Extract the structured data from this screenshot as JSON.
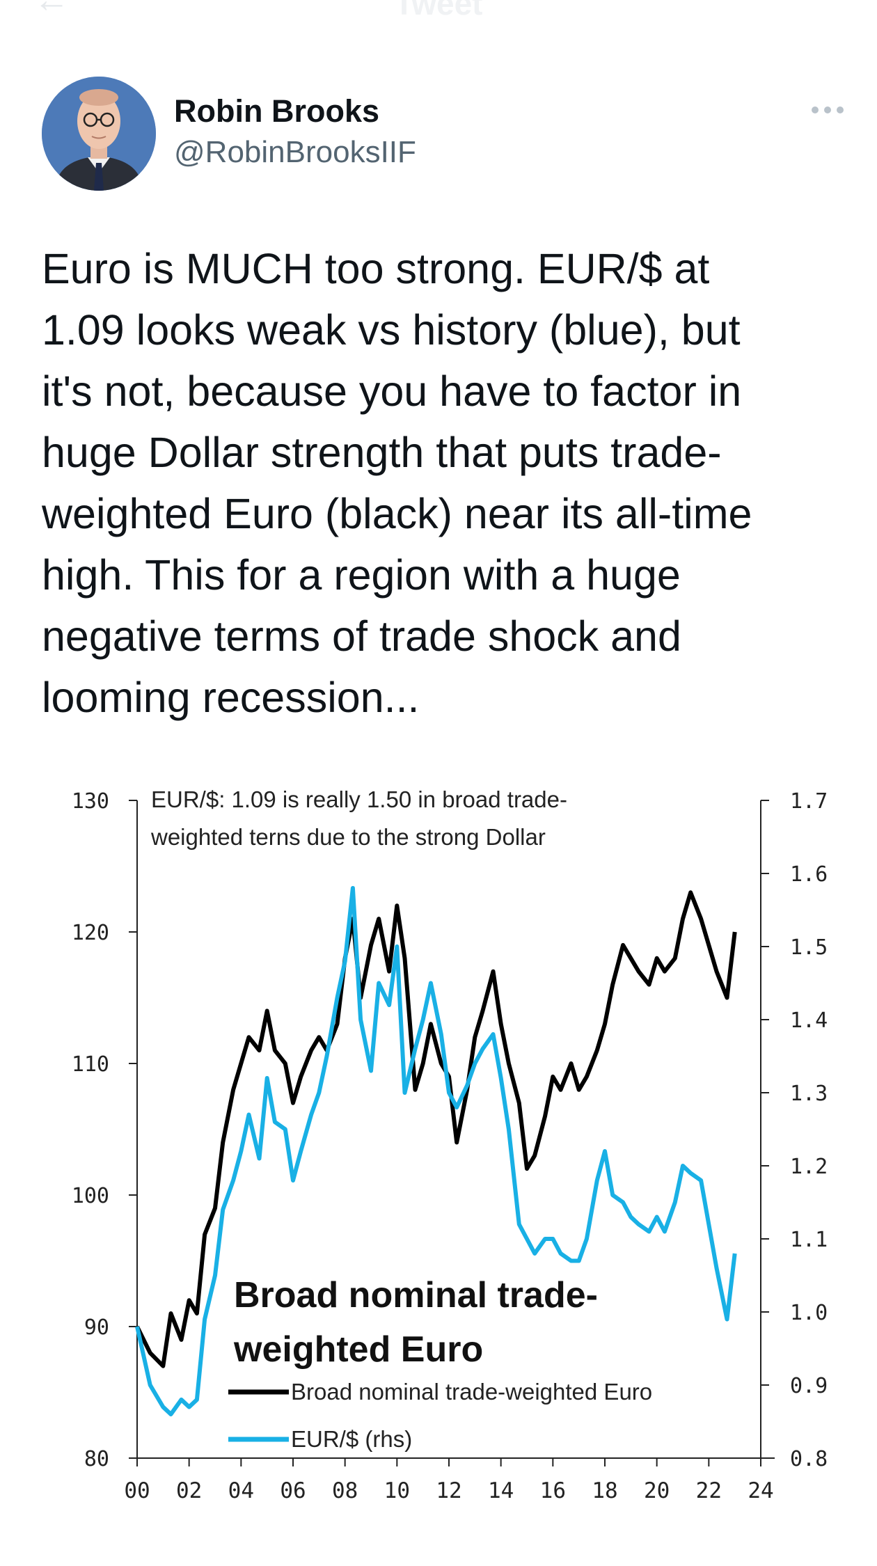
{
  "topbar": {
    "title": "Tweet",
    "back_icon": "back-arrow-icon"
  },
  "author": {
    "name": "Robin Brooks",
    "handle": "@RobinBrooksIIF",
    "avatar_icon": "profile-photo"
  },
  "more_icon": "more-options-icon",
  "tweet_text": "Euro is MUCH too strong. EUR/$ at\n1.09 looks weak vs history (blue), but\nit's not, because you have to factor in\nhuge Dollar strength that puts trade-\nweighted Euro (black) near its all-time\nhigh. This for a region with a huge\nnegative terms of trade shock and\nlooming recession...",
  "chart_data": {
    "type": "line",
    "title": "EUR/$: 1.09 is really 1.50 in broad trade-weighted terns due to the strong Dollar",
    "title_lines": [
      "EUR/$: 1.09 is really 1.50 in broad trade-",
      "weighted terns due to the strong Dollar"
    ],
    "annotation_lines": [
      "Broad nominal trade-",
      "weighted Euro"
    ],
    "xlim": [
      0,
      24
    ],
    "x_ticks": [
      "00",
      "02",
      "04",
      "06",
      "08",
      "10",
      "12",
      "14",
      "16",
      "18",
      "20",
      "22",
      "24"
    ],
    "left_axis": {
      "ylim": [
        80,
        130
      ],
      "ticks": [
        "80",
        "90",
        "100",
        "110",
        "120",
        "130"
      ]
    },
    "right_axis": {
      "ylim": [
        0.8,
        1.7
      ],
      "ticks": [
        "0.8",
        "0.9",
        "1.0",
        "1.1",
        "1.2",
        "1.3",
        "1.4",
        "1.5",
        "1.6",
        "1.7"
      ]
    },
    "grid": false,
    "legend_position": "bottom-center",
    "series": [
      {
        "name": "Broad nominal trade-weighted Euro",
        "axis": "left",
        "color": "#000000",
        "x": [
          0,
          0.5,
          1,
          1.3,
          1.7,
          2,
          2.3,
          2.6,
          3,
          3.3,
          3.7,
          4,
          4.3,
          4.7,
          5,
          5.3,
          5.7,
          6,
          6.3,
          6.7,
          7,
          7.3,
          7.7,
          8,
          8.3,
          8.6,
          9,
          9.3,
          9.7,
          10,
          10.3,
          10.7,
          11,
          11.3,
          11.7,
          12,
          12.3,
          12.7,
          13,
          13.3,
          13.7,
          14,
          14.3,
          14.7,
          15,
          15.3,
          15.7,
          16,
          16.3,
          16.7,
          17,
          17.3,
          17.7,
          18,
          18.3,
          18.7,
          19,
          19.3,
          19.7,
          20,
          20.3,
          20.7,
          21,
          21.3,
          21.7,
          22,
          22.3,
          22.7,
          23
        ],
        "values": [
          90,
          88,
          87,
          91,
          89,
          92,
          91,
          97,
          99,
          104,
          108,
          110,
          112,
          111,
          114,
          111,
          110,
          107,
          109,
          111,
          112,
          111,
          113,
          118,
          121,
          115,
          119,
          121,
          117,
          122,
          118,
          108,
          110,
          113,
          110,
          109,
          104,
          108,
          112,
          114,
          117,
          113,
          110,
          107,
          102,
          103,
          106,
          109,
          108,
          110,
          108,
          109,
          111,
          113,
          116,
          119,
          118,
          117,
          116,
          118,
          117,
          118,
          121,
          123,
          121,
          119,
          117,
          115,
          120
        ]
      },
      {
        "name": "EUR/$ (rhs)",
        "axis": "right",
        "color": "#19b0e5",
        "x": [
          0,
          0.5,
          1,
          1.3,
          1.7,
          2,
          2.3,
          2.6,
          3,
          3.3,
          3.7,
          4,
          4.3,
          4.7,
          5,
          5.3,
          5.7,
          6,
          6.3,
          6.7,
          7,
          7.3,
          7.7,
          8,
          8.3,
          8.6,
          9,
          9.3,
          9.7,
          10,
          10.3,
          10.7,
          11,
          11.3,
          11.7,
          12,
          12.3,
          12.7,
          13,
          13.3,
          13.7,
          14,
          14.3,
          14.7,
          15,
          15.3,
          15.7,
          16,
          16.3,
          16.7,
          17,
          17.3,
          17.7,
          18,
          18.3,
          18.7,
          19,
          19.3,
          19.7,
          20,
          20.3,
          20.7,
          21,
          21.3,
          21.7,
          22,
          22.3,
          22.7,
          23
        ],
        "values": [
          0.98,
          0.9,
          0.87,
          0.86,
          0.88,
          0.87,
          0.88,
          0.99,
          1.05,
          1.14,
          1.18,
          1.22,
          1.27,
          1.21,
          1.32,
          1.26,
          1.25,
          1.18,
          1.22,
          1.27,
          1.3,
          1.35,
          1.43,
          1.48,
          1.58,
          1.4,
          1.33,
          1.45,
          1.42,
          1.5,
          1.3,
          1.36,
          1.4,
          1.45,
          1.38,
          1.3,
          1.28,
          1.31,
          1.34,
          1.36,
          1.38,
          1.32,
          1.25,
          1.12,
          1.1,
          1.08,
          1.1,
          1.1,
          1.08,
          1.07,
          1.07,
          1.1,
          1.18,
          1.22,
          1.16,
          1.15,
          1.13,
          1.12,
          1.11,
          1.13,
          1.11,
          1.15,
          1.2,
          1.19,
          1.18,
          1.12,
          1.06,
          0.99,
          1.08
        ]
      }
    ]
  }
}
